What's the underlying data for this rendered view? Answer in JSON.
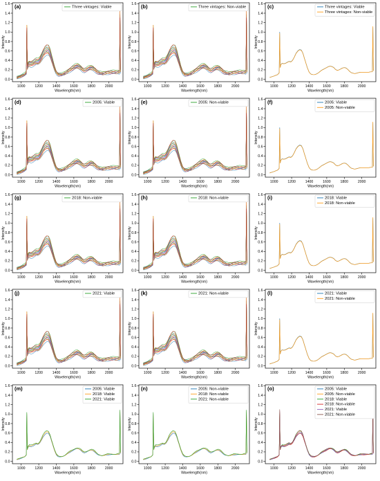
{
  "figure": {
    "panels": [
      {
        "tag": "(a)",
        "legend": [
          {
            "label": "Three vintages: Viable",
            "color": "#2ca02c"
          }
        ],
        "style": "many"
      },
      {
        "tag": "(b)",
        "legend": [
          {
            "label": "Three vintages: Non-viable",
            "color": "#2ca02c"
          }
        ],
        "style": "many"
      },
      {
        "tag": "(c)",
        "legend": [
          {
            "label": "Three vintages: Viable",
            "color": "#1f77b4"
          },
          {
            "label": "Three vintages: Non-viable",
            "color": "#ff9f1c"
          }
        ],
        "style": "mean"
      },
      {
        "tag": "(d)",
        "legend": [
          {
            "label": "2005: Viable",
            "color": "#2ca02c"
          }
        ],
        "style": "many"
      },
      {
        "tag": "(e)",
        "legend": [
          {
            "label": "2005: Non-viable",
            "color": "#2ca02c"
          }
        ],
        "style": "many"
      },
      {
        "tag": "(f)",
        "legend": [
          {
            "label": "2005: Viable",
            "color": "#1f77b4"
          },
          {
            "label": "2005: Non-viable",
            "color": "#ff9f1c"
          }
        ],
        "style": "mean"
      },
      {
        "tag": "(g)",
        "legend": [
          {
            "label": "2018: Non-viable",
            "color": "#2ca02c"
          }
        ],
        "style": "many"
      },
      {
        "tag": "(h)",
        "legend": [
          {
            "label": "2018: Non-viable",
            "color": "#2ca02c"
          }
        ],
        "style": "many"
      },
      {
        "tag": "(i)",
        "legend": [
          {
            "label": "2018: Viable",
            "color": "#1f77b4"
          },
          {
            "label": "2018: Non-viable",
            "color": "#ff9f1c"
          }
        ],
        "style": "mean"
      },
      {
        "tag": "(j)",
        "legend": [
          {
            "label": "2021: Viable",
            "color": "#2ca02c"
          }
        ],
        "style": "many"
      },
      {
        "tag": "(k)",
        "legend": [
          {
            "label": "2021: Non-viable",
            "color": "#2ca02c"
          }
        ],
        "style": "many"
      },
      {
        "tag": "(l)",
        "legend": [
          {
            "label": "2021: Viable",
            "color": "#1f77b4"
          },
          {
            "label": "2021: Non-viable",
            "color": "#ff9f1c"
          }
        ],
        "style": "mean"
      },
      {
        "tag": "(m)",
        "legend": [
          {
            "label": "2005: Viable",
            "color": "#1f77b4"
          },
          {
            "label": "2018: Viable",
            "color": "#ff9f1c"
          },
          {
            "label": "2021: Viable",
            "color": "#2ca02c"
          }
        ],
        "style": "group3"
      },
      {
        "tag": "(n)",
        "legend": [
          {
            "label": "2005: Non-viable",
            "color": "#1f77b4"
          },
          {
            "label": "2018: Non-viable",
            "color": "#ff9f1c"
          },
          {
            "label": "2021: Non-viable",
            "color": "#2ca02c"
          }
        ],
        "style": "group3"
      },
      {
        "tag": "(o)",
        "legend": [
          {
            "label": "2005: Viable",
            "color": "#1f77b4"
          },
          {
            "label": "2005: Non-viable",
            "color": "#ff9f1c"
          },
          {
            "label": "2018: Viable",
            "color": "#2ca02c"
          },
          {
            "label": "2018: Non-viable",
            "color": "#d62728"
          },
          {
            "label": "2021: Viable",
            "color": "#9467bd"
          },
          {
            "label": "2021: Non-viable",
            "color": "#8c564b"
          }
        ],
        "style": "group6"
      }
    ]
  },
  "chart_data": {
    "type": "line",
    "xlabel": "Wavelength(nm)",
    "ylabel": "Intensity",
    "xlim": [
      900,
      2160
    ],
    "ylim": [
      -0.05,
      1.62
    ],
    "xticks": [
      1000,
      1200,
      1400,
      1600,
      1800,
      2000
    ],
    "yticks": [
      0.0,
      0.2,
      0.4,
      0.6,
      0.8,
      1.0,
      1.2,
      1.4,
      1.6
    ],
    "grid": false,
    "legend_position": "top-right",
    "mean_spectrum": {
      "x": [
        950,
        1000,
        1040,
        1060,
        1065,
        1075,
        1090,
        1110,
        1130,
        1150,
        1170,
        1190,
        1210,
        1230,
        1250,
        1270,
        1290,
        1310,
        1330,
        1340,
        1360,
        1380,
        1400,
        1420,
        1440,
        1460,
        1480,
        1500,
        1520,
        1540,
        1560,
        1580,
        1600,
        1620,
        1640,
        1660,
        1680,
        1700,
        1720,
        1740,
        1760,
        1780,
        1800,
        1820,
        1840,
        1860,
        1880,
        1900,
        1920,
        1940,
        1960,
        1980,
        2000,
        2020,
        2040,
        2060,
        2080,
        2100,
        2120,
        2130,
        2135
      ],
      "y": [
        0.04,
        0.07,
        0.1,
        0.14,
        0.2,
        0.3,
        0.34,
        0.33,
        0.34,
        0.36,
        0.38,
        0.37,
        0.4,
        0.47,
        0.55,
        0.6,
        0.63,
        0.62,
        0.55,
        0.48,
        0.36,
        0.24,
        0.15,
        0.11,
        0.1,
        0.1,
        0.11,
        0.13,
        0.16,
        0.19,
        0.21,
        0.23,
        0.25,
        0.27,
        0.28,
        0.27,
        0.25,
        0.21,
        0.19,
        0.2,
        0.22,
        0.24,
        0.25,
        0.24,
        0.21,
        0.17,
        0.14,
        0.13,
        0.12,
        0.13,
        0.14,
        0.15,
        0.15,
        0.15,
        0.15,
        0.15,
        0.15,
        0.16,
        0.16,
        0.2,
        0.15
      ]
    },
    "spikes": [
      {
        "x": 1065,
        "y_many": 1.15,
        "y_mean": 1.0
      },
      {
        "x": 2125,
        "y_many": 1.45,
        "y_mean": 1.1
      }
    ]
  }
}
